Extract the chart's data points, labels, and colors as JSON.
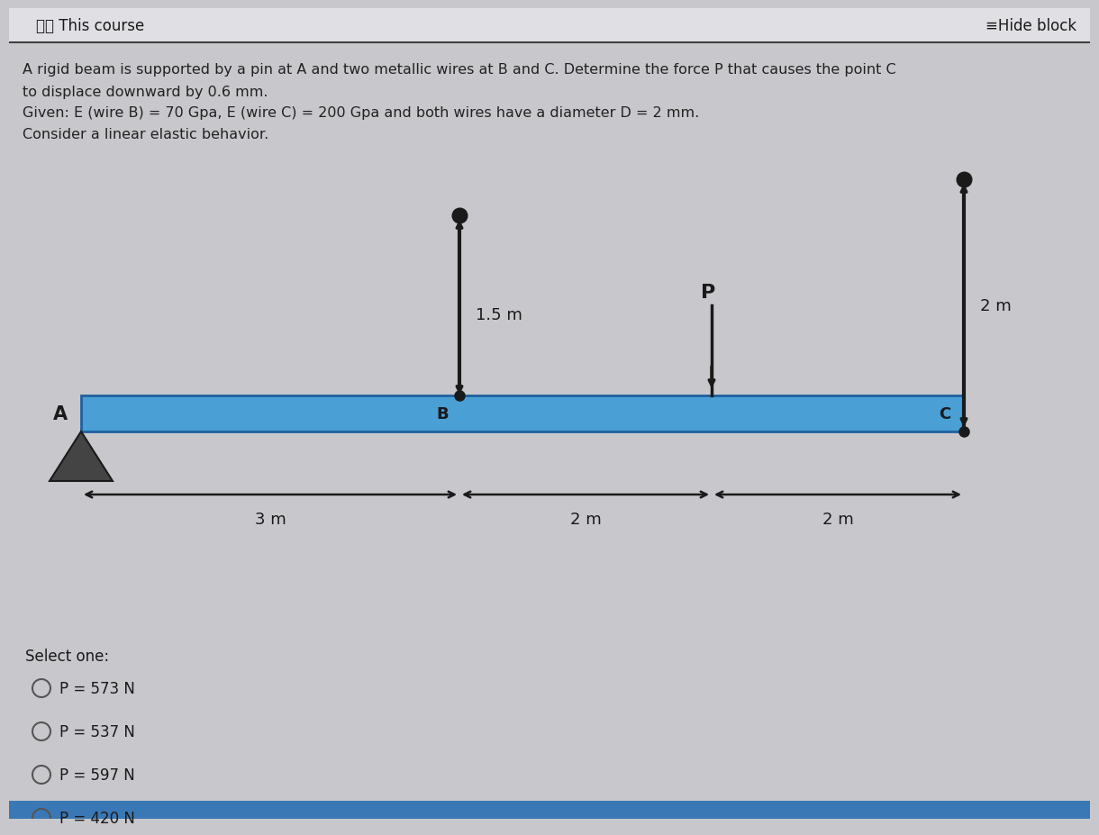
{
  "bg_color": "#c8c8cc",
  "header_bg": "#e8e8e8",
  "course_text": "⧀⧀ This course",
  "hide_block_text": "≡Hide block",
  "problem_line1": "A rigid beam is supported by a pin at A and two metallic wires at B and C. Determine the force P that causes the point C",
  "problem_line2": "to displace downward by 0.6 mm.",
  "problem_line3": "Given: E (wire B) = 70 Gpa, E (wire C) = 200 Gpa and both wires have a diameter D = 2 mm.",
  "problem_line4": "Consider a linear elastic behavior.",
  "beam_color": "#4a9fd4",
  "beam_edge_color": "#2060a0",
  "wire_B_label": "1.5 m",
  "wire_C_label": "2 m",
  "dist_labels": [
    "3 m",
    "2 m",
    "2 m"
  ],
  "select_one_options": [
    "P = 573 N",
    "P = 537 N",
    "P = 597 N",
    "P = 420 N"
  ],
  "dark_color": "#1a1a1a",
  "text_color": "#222222"
}
